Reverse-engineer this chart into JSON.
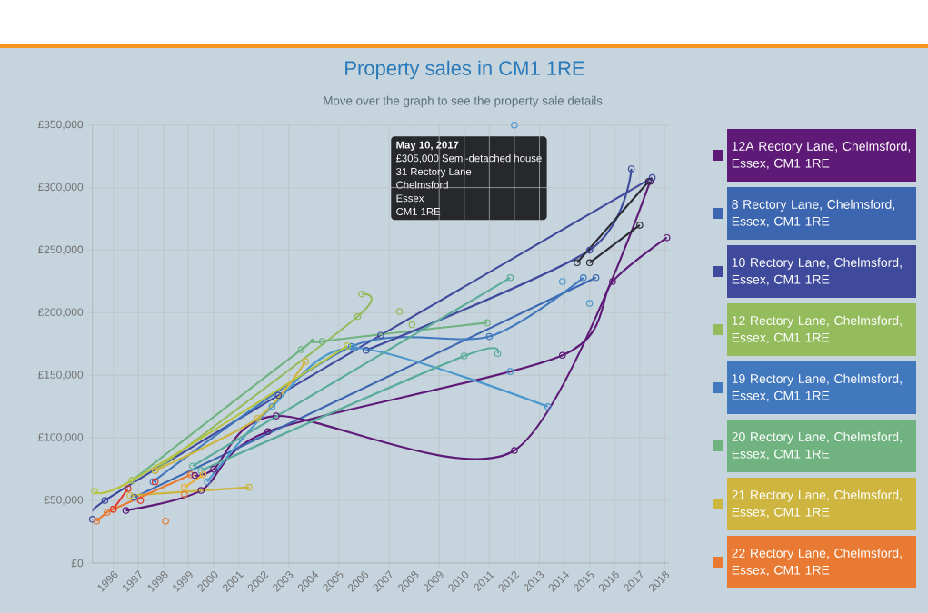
{
  "chart_data": {
    "type": "line",
    "title": "Property sales in CM1 1RE",
    "subtitle": "Move over the graph to see the property sale details.",
    "xlim": [
      "1995-03",
      "2018-03"
    ],
    "ylim": [
      0,
      350000
    ],
    "xticks": [
      "1996",
      "1997",
      "1998",
      "1999",
      "2000",
      "2001",
      "2002",
      "2003",
      "2004",
      "2005",
      "2006",
      "2007",
      "2008",
      "2009",
      "2010",
      "2011",
      "2012",
      "2013",
      "2014",
      "2015",
      "2016",
      "2017",
      "2018"
    ],
    "yticks": [
      {
        "value": 0,
        "label": "£0"
      },
      {
        "value": 50000,
        "label": "£50,000"
      },
      {
        "value": 100000,
        "label": "£100,000"
      },
      {
        "value": 150000,
        "label": "£150,000"
      },
      {
        "value": 200000,
        "label": "£200,000"
      },
      {
        "value": 250000,
        "label": "£250,000"
      },
      {
        "value": 300000,
        "label": "£300,000"
      },
      {
        "value": 350000,
        "label": "£350,000"
      }
    ],
    "grid": true,
    "legend": "right",
    "marker": "circle",
    "line_style": "solid",
    "annotations": [
      "May 10, 2017",
      "£305,000 Semi-detached house",
      "31 Rectory Lane",
      "Chelmsford",
      "Essex",
      "CM1 1RE"
    ],
    "series": [
      {
        "name": "12A Rectory Lane, Chelmsford, Essex, CM1 1RE",
        "color": "#5f1a78",
        "x": [
          "1996-07",
          "1999-07",
          "2002-03",
          "2013-12",
          "2015-12",
          "2018-02"
        ],
        "values": [
          42000,
          58000,
          105000,
          166000,
          225000,
          260000
        ]
      },
      {
        "name": "8 Rectory Lane, Chelmsford, Essex, CM1 1RE",
        "color": "#3d66b0",
        "x": [
          "1996-11",
          "2015-04"
        ],
        "values": [
          52500,
          228000
        ]
      },
      {
        "name": "10 Rectory Lane, Chelmsford, Essex, CM1 1RE",
        "color": "#3f4a9c",
        "x": [
          "1995-03",
          "1995-09",
          "2002-08",
          "2006-09",
          "2017-07"
        ],
        "values": [
          35000,
          50000,
          134000,
          182000,
          308000
        ]
      },
      {
        "name": "12 Rectory Lane, Chelmsford, Essex, CM1 1RE",
        "color": "#94bb5c",
        "x": [
          "1997-09",
          "2005-10",
          "2005-12"
        ],
        "values": [
          74000,
          197000,
          215000
        ]
      },
      {
        "name": "19 Rectory Lane, Chelmsford, Essex, CM1 1RE",
        "color": "#4278be",
        "x": [
          "1997-08",
          "2005-07",
          "2011-01",
          "2014-10"
        ],
        "values": [
          65000,
          173000,
          181000,
          228000
        ]
      },
      {
        "name": "20 Rectory Lane, Chelmsford, Essex, CM1 1RE",
        "color": "#70b380",
        "x": [
          "1996-10",
          "2003-07",
          "2004-05",
          "2010-12"
        ],
        "values": [
          66000,
          170500,
          177000,
          192000
        ]
      },
      {
        "name": "21 Rectory Lane, Chelmsford, Essex, CM1 1RE",
        "color": "#cdb53f",
        "x": [
          "1996-09",
          "2001-06"
        ],
        "values": [
          54000,
          60500
        ]
      },
      {
        "name": "22 Rectory Lane, Chelmsford, Essex, CM1 1RE",
        "color": "#e87a33",
        "x": [
          "1995-05",
          "1995-10",
          "1996-01",
          "1999-02"
        ],
        "values": [
          33500,
          40500,
          43000,
          70500
        ]
      },
      {
        "color": "#5f1a78",
        "x": [
          "1999-04",
          "2000-01",
          "2002-07",
          "2012-01",
          "2017-06"
        ],
        "values": [
          70000,
          75000,
          117500,
          90000,
          305000
        ]
      },
      {
        "color": "#3f4a9c",
        "x": [
          "2006-02",
          "2015-01",
          "2016-09"
        ],
        "values": [
          170000,
          250000,
          315000
        ]
      },
      {
        "color": "#2b2b35",
        "x": [
          "2014-07",
          "2017-05-10"
        ],
        "values": [
          240000,
          305000
        ]
      },
      {
        "color": "#2b2b35",
        "x": [
          "2015-01",
          "2017-01"
        ],
        "values": [
          240000,
          270000
        ]
      },
      {
        "color": "#4a97cc",
        "x": [
          "1999-10",
          "2002-05",
          "2005-08",
          "2013-05"
        ],
        "values": [
          65000,
          125000,
          172000,
          125000
        ]
      },
      {
        "color": "#5aab9a",
        "x": [
          "1999-07",
          "2010-01",
          "2011-05"
        ],
        "values": [
          74000,
          165500,
          167500
        ]
      },
      {
        "color": "#5aab9a",
        "x": [
          "1999-03",
          "2011-11"
        ],
        "values": [
          77500,
          228000
        ]
      },
      {
        "color": "#b6c43f",
        "x": [
          "1995-04",
          "1996-10",
          "2005-05"
        ],
        "values": [
          57500,
          66000,
          173500
        ]
      },
      {
        "color": "#cdb53f",
        "x": [
          "1997-09",
          "2001-10",
          "2003-09"
        ],
        "values": [
          74000,
          115500,
          161000
        ]
      },
      {
        "color": "#e0382a",
        "x": [
          "1996-01",
          "1996-08"
        ],
        "values": [
          43000,
          59500
        ]
      },
      {
        "color": "#e8b03a",
        "x": [
          "1998-11",
          "1999-08"
        ],
        "values": [
          60500,
          70500
        ]
      },
      {
        "type": "scatter",
        "color": "#4a97cc",
        "x": [
          "2012-01",
          "2015-01",
          "2013-12",
          "2011-11"
        ],
        "values": [
          350000,
          207500,
          225000,
          153000
        ]
      },
      {
        "type": "scatter",
        "color": "#94bb5c",
        "x": [
          "2007-06",
          "2007-12"
        ],
        "values": [
          201000,
          190500
        ]
      },
      {
        "type": "scatter",
        "color": "#e87a33",
        "x": [
          "1998-02",
          "1998-11"
        ],
        "values": [
          33500,
          55000
        ]
      },
      {
        "type": "scatter",
        "color": "#e0382a",
        "x": [
          "1997-02",
          "1997-09"
        ],
        "values": [
          50000,
          65000
        ]
      }
    ]
  }
}
